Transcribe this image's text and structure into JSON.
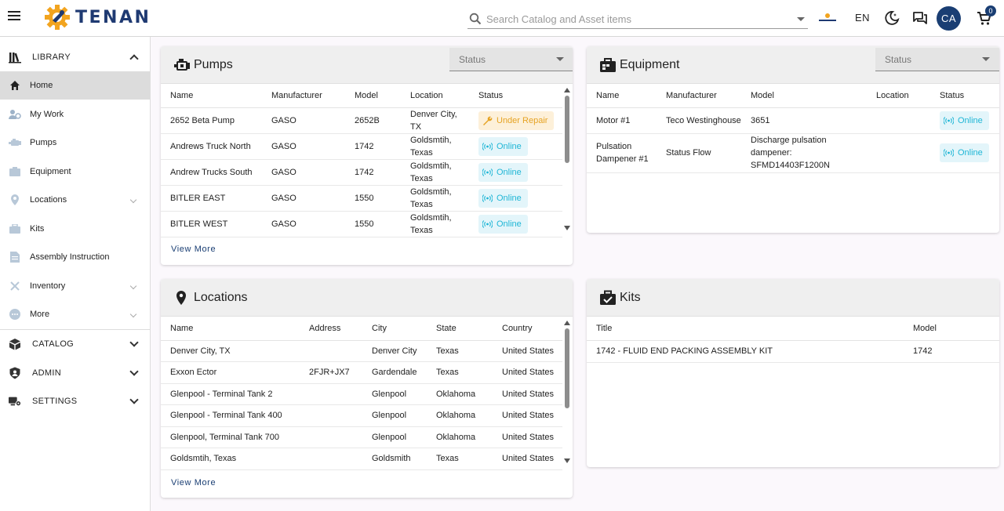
{
  "topbar": {
    "logo_text": "TENAN",
    "search_placeholder": "Search Catalog and Asset items",
    "language": "EN",
    "avatar_initials": "CA",
    "cart_count": "0"
  },
  "sidebar": {
    "library_label": "LIBRARY",
    "items": [
      {
        "label": "Home",
        "icon": "home-icon"
      },
      {
        "label": "My Work",
        "icon": "my-work-icon"
      },
      {
        "label": "Pumps",
        "icon": "pump-icon"
      },
      {
        "label": "Equipment",
        "icon": "equipment-icon"
      },
      {
        "label": "Locations",
        "icon": "location-pin-icon"
      },
      {
        "label": "Kits",
        "icon": "kit-icon"
      },
      {
        "label": "Assembly Instruction",
        "icon": "assembly-icon"
      },
      {
        "label": "Inventory",
        "icon": "tools-icon"
      },
      {
        "label": "More",
        "icon": "more-icon"
      }
    ],
    "sections": [
      {
        "label": "CATALOG",
        "icon": "catalog-icon"
      },
      {
        "label": "ADMIN",
        "icon": "shield-icon"
      },
      {
        "label": "SETTINGS",
        "icon": "settings-icon"
      }
    ]
  },
  "pumps": {
    "title": "Pumps",
    "status_label": "Status",
    "columns": [
      "Name",
      "Manufacturer",
      "Model",
      "Location",
      "Status"
    ],
    "rows": [
      {
        "name": "2652 Beta Pump",
        "manufacturer": "GASO",
        "model": "2652B",
        "location": "Denver City, TX",
        "status": "Under Repair"
      },
      {
        "name": "Andrews Truck North",
        "manufacturer": "GASO",
        "model": "1742",
        "location": "Goldsmtih, Texas",
        "status": "Online"
      },
      {
        "name": "Andrew Trucks South",
        "manufacturer": "GASO",
        "model": "1742",
        "location": "Goldsmtih, Texas",
        "status": "Online"
      },
      {
        "name": "BITLER EAST",
        "manufacturer": "GASO",
        "model": "1550",
        "location": "Goldsmtih, Texas",
        "status": "Online"
      },
      {
        "name": "BITLER WEST",
        "manufacturer": "GASO",
        "model": "1550",
        "location": "Goldsmtih, Texas",
        "status": "Online"
      }
    ],
    "view_more": "View More"
  },
  "equipment": {
    "title": "Equipment",
    "status_label": "Status",
    "columns": [
      "Name",
      "Manufacturer",
      "Model",
      "Location",
      "Status"
    ],
    "rows": [
      {
        "name": "Motor #1",
        "manufacturer": "Teco Westinghouse",
        "model": "3651",
        "location": "",
        "status": "Online"
      },
      {
        "name": "Pulsation Dampener #1",
        "manufacturer": "Status Flow",
        "model": "Discharge pulsation dampener: SFMD14403F1200N",
        "location": "",
        "status": "Online"
      }
    ]
  },
  "locations": {
    "title": "Locations",
    "columns": [
      "Name",
      "Address",
      "City",
      "State",
      "Country"
    ],
    "rows": [
      {
        "name": "Denver City, TX",
        "address": "",
        "city": "Denver City",
        "state": "Texas",
        "country": "United States"
      },
      {
        "name": "Exxon Ector",
        "address": "2FJR+JX7",
        "city": "Gardendale",
        "state": "Texas",
        "country": "United States"
      },
      {
        "name": "Glenpool - Terminal Tank 2",
        "address": "",
        "city": "Glenpool",
        "state": "Oklahoma",
        "country": "United States"
      },
      {
        "name": "Glenpool - Terminal Tank 400",
        "address": "",
        "city": "Glenpool",
        "state": "Oklahoma",
        "country": "United States"
      },
      {
        "name": "Glenpool, Terminal Tank 700",
        "address": "",
        "city": "Glenpool",
        "state": "Oklahoma",
        "country": "United States"
      },
      {
        "name": "Goldsmtih, Texas",
        "address": "",
        "city": "Goldsmith",
        "state": "Texas",
        "country": "United States"
      }
    ],
    "view_more": "View More"
  },
  "kits": {
    "title": "Kits",
    "columns": [
      "Title",
      "Model"
    ],
    "rows": [
      {
        "title": "1742 - FLUID END PACKING ASSEMBLY KIT",
        "model": "1742"
      }
    ]
  },
  "colors": {
    "brand_navy": "#1a3e73",
    "logo_orange": "#f2a41f",
    "online": "#1fb6d6",
    "repair": "#e6a323"
  }
}
